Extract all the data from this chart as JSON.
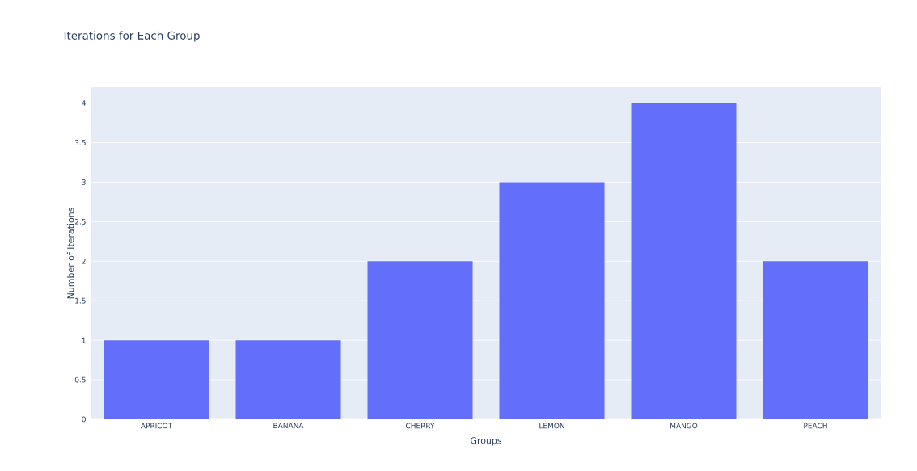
{
  "chart_data": {
    "type": "bar",
    "title": "Iterations for Each Group",
    "xlabel": "Groups",
    "ylabel": "Number of Iterations",
    "categories": [
      "APRICOT",
      "BANANA",
      "CHERRY",
      "LEMON",
      "MANGO",
      "PEACH"
    ],
    "values": [
      1,
      1,
      2,
      3,
      4,
      2
    ],
    "color": "#636efa",
    "ylim": [
      0,
      4.2
    ],
    "yticks": [
      0,
      0.5,
      1,
      1.5,
      2,
      2.5,
      3,
      3.5,
      4
    ],
    "grid": "y"
  }
}
